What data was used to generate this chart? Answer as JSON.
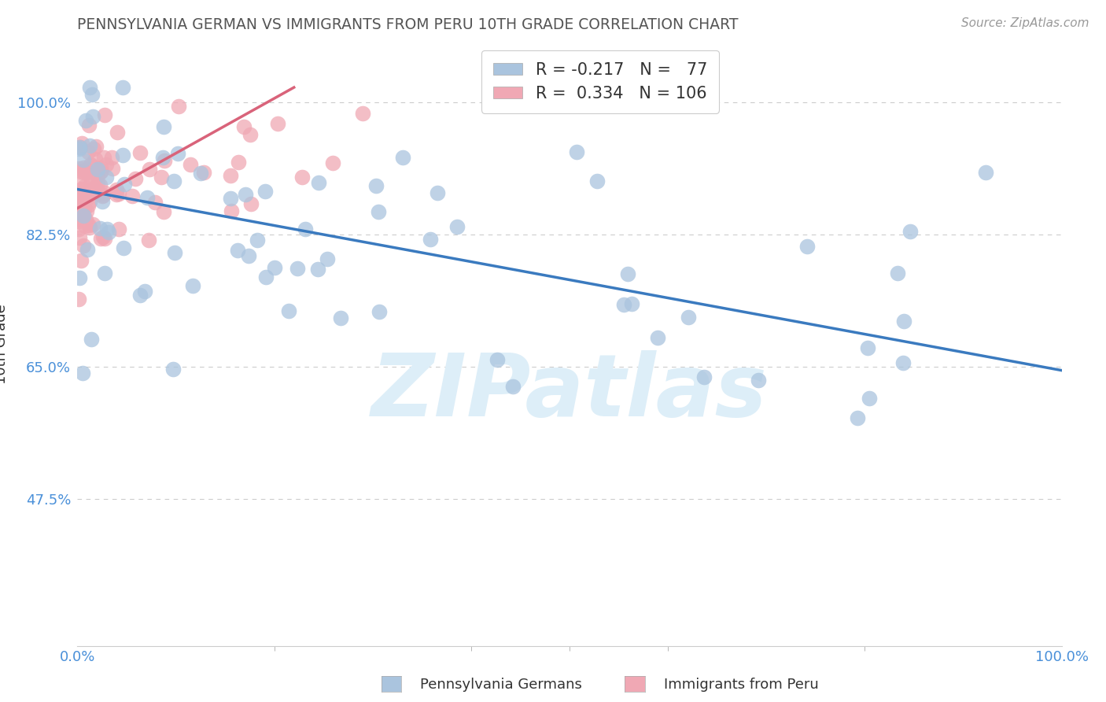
{
  "title": "PENNSYLVANIA GERMAN VS IMMIGRANTS FROM PERU 10TH GRADE CORRELATION CHART",
  "source": "Source: ZipAtlas.com",
  "ylabel": "10th Grade",
  "yticks": [
    0.475,
    0.65,
    0.825,
    1.0
  ],
  "ytick_labels": [
    "47.5%",
    "65.0%",
    "82.5%",
    "100.0%"
  ],
  "xmin": 0.0,
  "xmax": 1.0,
  "ymin": 0.28,
  "ymax": 1.08,
  "r_blue": -0.217,
  "n_blue": 77,
  "r_pink": 0.334,
  "n_pink": 106,
  "blue_color": "#aac4de",
  "pink_color": "#f0a8b4",
  "blue_line_color": "#3a7abf",
  "pink_line_color": "#d9637a",
  "blue_trend_y_start": 0.885,
  "blue_trend_y_end": 0.645,
  "pink_trend_x_start": 0.0,
  "pink_trend_x_end": 0.22,
  "pink_trend_y_start": 0.86,
  "pink_trend_y_end": 1.02,
  "background_color": "#ffffff",
  "grid_color": "#cccccc",
  "title_color": "#555555",
  "axis_color": "#4a90d9",
  "watermark": "ZIPatlas",
  "watermark_color": "#ddeef8",
  "legend_label1": "Pennsylvania Germans",
  "legend_label2": "Immigrants from Peru"
}
